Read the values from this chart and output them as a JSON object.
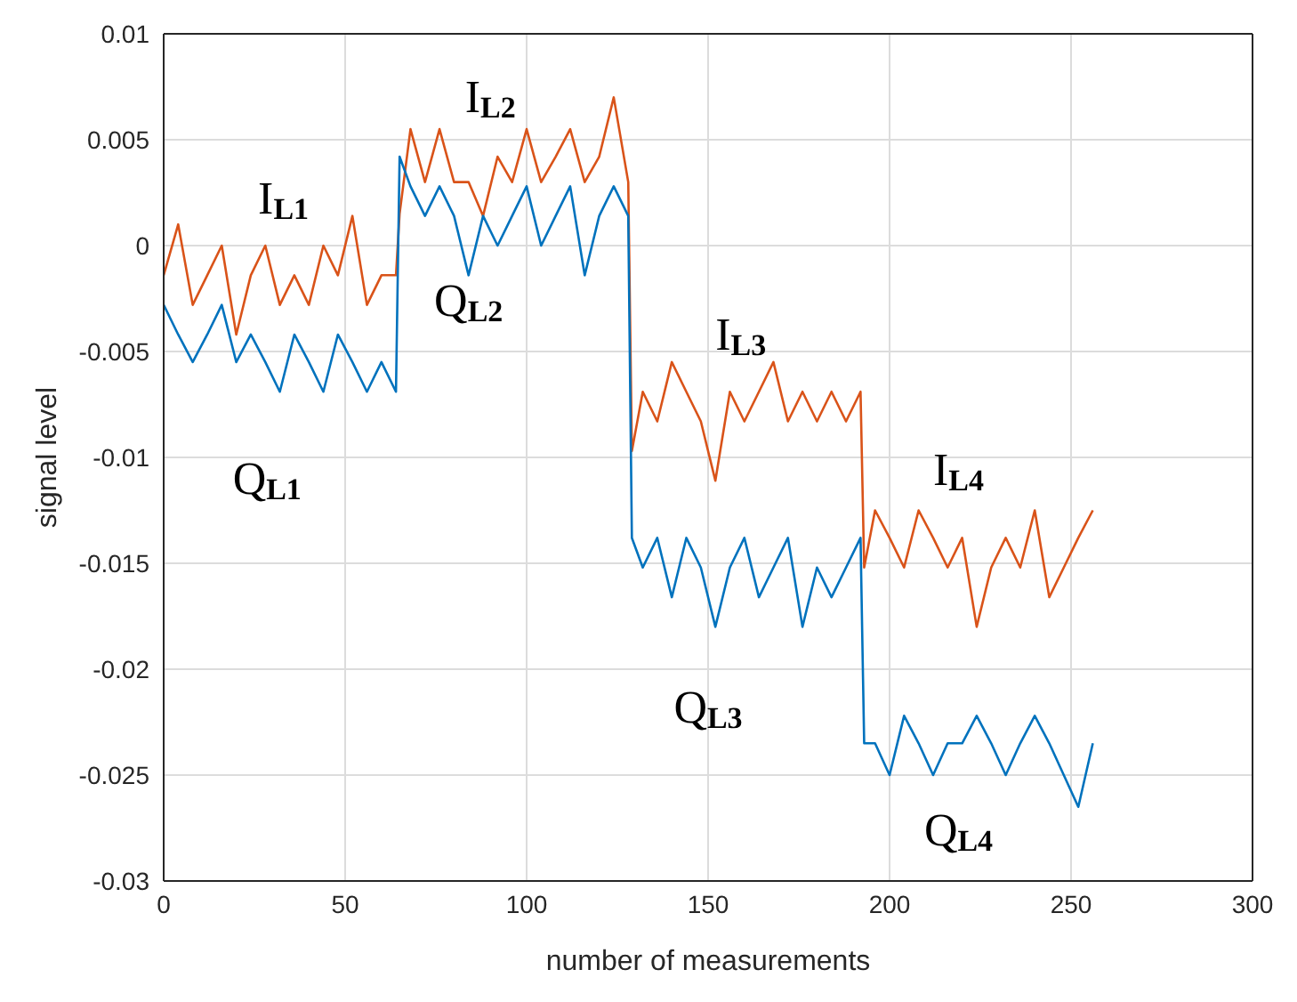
{
  "chart_data": {
    "type": "line",
    "xlabel": "number of measurements",
    "ylabel": "signal level",
    "x": [
      0,
      4,
      8,
      12,
      16,
      20,
      24,
      28,
      32,
      36,
      40,
      44,
      48,
      52,
      56,
      60,
      64,
      65,
      68,
      72,
      76,
      80,
      84,
      88,
      92,
      96,
      100,
      104,
      108,
      112,
      116,
      120,
      124,
      128,
      129,
      132,
      136,
      140,
      144,
      148,
      152,
      156,
      160,
      164,
      168,
      172,
      176,
      180,
      184,
      188,
      192,
      193,
      196,
      200,
      204,
      208,
      212,
      216,
      220,
      224,
      228,
      232,
      236,
      240,
      244,
      248,
      252,
      256
    ],
    "series": [
      {
        "color": "#d95319",
        "values": [
          -0.0014,
          0.001,
          -0.0028,
          -0.0014,
          0,
          -0.0042,
          -0.0014,
          0,
          -0.0028,
          -0.0014,
          -0.0028,
          0,
          -0.0014,
          0.0014,
          -0.0028,
          -0.0014,
          -0.0014,
          0.0015,
          0.0055,
          0.003,
          0.0055,
          0.003,
          0.003,
          0.0014,
          0.0042,
          0.003,
          0.0055,
          0.003,
          0.0042,
          0.0055,
          0.003,
          0.0042,
          0.007,
          0.003,
          -0.0097,
          -0.0069,
          -0.0083,
          -0.0055,
          -0.0069,
          -0.0083,
          -0.0111,
          -0.0069,
          -0.0083,
          -0.0069,
          -0.0055,
          -0.0083,
          -0.0069,
          -0.0083,
          -0.0069,
          -0.0083,
          -0.0069,
          -0.0152,
          -0.0125,
          -0.0138,
          -0.0152,
          -0.0125,
          -0.0138,
          -0.0152,
          -0.0138,
          -0.018,
          -0.0152,
          -0.0138,
          -0.0152,
          -0.0125,
          -0.0166,
          -0.0152,
          -0.0138,
          -0.0125
        ]
      },
      {
        "color": "#0072bd",
        "values": [
          -0.0028,
          -0.0042,
          -0.0055,
          -0.0042,
          -0.0028,
          -0.0055,
          -0.0042,
          -0.0055,
          -0.0069,
          -0.0042,
          -0.0055,
          -0.0069,
          -0.0042,
          -0.0055,
          -0.0069,
          -0.0055,
          -0.0069,
          0.0042,
          0.0028,
          0.0014,
          0.0028,
          0.0014,
          -0.0014,
          0.0014,
          0,
          0.0014,
          0.0028,
          0,
          0.0014,
          0.0028,
          -0.0014,
          0.0014,
          0.0028,
          0.0014,
          -0.0138,
          -0.0152,
          -0.0138,
          -0.0166,
          -0.0138,
          -0.0152,
          -0.018,
          -0.0152,
          -0.0138,
          -0.0166,
          -0.0152,
          -0.0138,
          -0.018,
          -0.0152,
          -0.0166,
          -0.0152,
          -0.0138,
          -0.0235,
          -0.0235,
          -0.025,
          -0.0222,
          -0.0235,
          -0.025,
          -0.0235,
          -0.0235,
          -0.0222,
          -0.0235,
          -0.025,
          -0.0235,
          -0.0222,
          -0.0235,
          -0.025,
          -0.0265,
          -0.0235
        ]
      }
    ],
    "xlim": [
      0,
      300
    ],
    "xticks": [
      0,
      50,
      100,
      150,
      200,
      250,
      300
    ],
    "ylim": [
      -0.03,
      0.01
    ],
    "yticks": [
      -0.03,
      -0.025,
      -0.02,
      -0.015,
      -0.01,
      -0.005,
      0,
      0.005,
      0.01
    ],
    "grid": true,
    "legend": false,
    "marker": "none",
    "line_style": "solid",
    "annotations": [
      "I$_{L1}$",
      "Q$_{L1}$",
      "I$_{L2}$",
      "Q$_{L2}$",
      "I$_{L3}$",
      "Q$_{L3}$",
      "I$_{L4}$",
      "Q$_{L4}$"
    ]
  }
}
